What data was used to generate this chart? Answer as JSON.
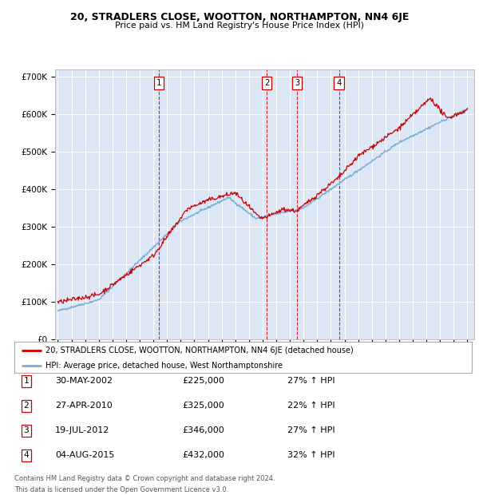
{
  "title": "20, STRADLERS CLOSE, WOOTTON, NORTHAMPTON, NN4 6JE",
  "subtitle": "Price paid vs. HM Land Registry's House Price Index (HPI)",
  "plot_bg_color": "#dce6f5",
  "grid_color": "#ffffff",
  "hpi_line_color": "#7aafd4",
  "sale_line_color": "#cc0000",
  "sale_transactions": [
    {
      "label": "1",
      "date_num": 2002.41,
      "price": 225000,
      "date_str": "30-MAY-2002",
      "pct": "27%"
    },
    {
      "label": "2",
      "date_num": 2010.32,
      "price": 325000,
      "date_str": "27-APR-2010",
      "pct": "22%"
    },
    {
      "label": "3",
      "date_num": 2012.54,
      "price": 346000,
      "date_str": "19-JUL-2012",
      "pct": "27%"
    },
    {
      "label": "4",
      "date_num": 2015.59,
      "price": 432000,
      "date_str": "04-AUG-2015",
      "pct": "32%"
    }
  ],
  "ylim": [
    0,
    720000
  ],
  "xlim": [
    1994.8,
    2025.5
  ],
  "yticks": [
    0,
    100000,
    200000,
    300000,
    400000,
    500000,
    600000,
    700000
  ],
  "ytick_labels": [
    "£0",
    "£100K",
    "£200K",
    "£300K",
    "£400K",
    "£500K",
    "£600K",
    "£700K"
  ],
  "legend_label_red": "20, STRADLERS CLOSE, WOOTTON, NORTHAMPTON, NN4 6JE (detached house)",
  "legend_label_blue": "HPI: Average price, detached house, West Northamptonshire",
  "dates_display": [
    "30-MAY-2002",
    "27-APR-2010",
    "19-JUL-2012",
    "04-AUG-2015"
  ],
  "prices_display": [
    "£225,000",
    "£325,000",
    "£346,000",
    "£432,000"
  ],
  "pcts_display": [
    "27% ↑ HPI",
    "22% ↑ HPI",
    "27% ↑ HPI",
    "32% ↑ HPI"
  ],
  "footer_line1": "Contains HM Land Registry data © Crown copyright and database right 2024.",
  "footer_line2": "This data is licensed under the Open Government Licence v3.0."
}
